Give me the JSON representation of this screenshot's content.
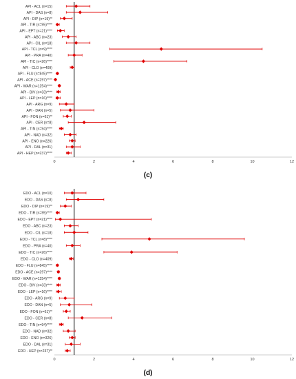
{
  "colors": {
    "marker": "#e00000",
    "whisker": "#e00000",
    "reference_line": "#222222",
    "axis": "#bdbdbd",
    "text": "#333333"
  },
  "panels": [
    {
      "id": "c",
      "label": "(c)"
    },
    {
      "id": "d",
      "label": "(d)"
    }
  ],
  "chart_data": [
    {
      "type": "scatter",
      "subtype": "forest-plot",
      "panel": "(c)",
      "xlim": [
        0,
        12
      ],
      "xticks": [
        0,
        2,
        4,
        6,
        8,
        10,
        12
      ],
      "reference_x": 1,
      "grid": false,
      "rows": [
        {
          "label": "API - ACL (n=15)",
          "x": 1.1,
          "lo": 0.6,
          "hi": 1.8
        },
        {
          "label": "API - DAS (n=8)",
          "x": 1.3,
          "lo": 0.6,
          "hi": 2.7
        },
        {
          "label": "API - DIP (n=19)**",
          "x": 0.5,
          "lo": 0.3,
          "hi": 0.9
        },
        {
          "label": "API - TIR (n=95)****",
          "x": 0.15,
          "lo": 0.1,
          "hi": 0.25
        },
        {
          "label": "API - EPT (n=21)****",
          "x": 0.3,
          "lo": 0.15,
          "hi": 0.5
        },
        {
          "label": "API - ABC (n=23)",
          "x": 0.7,
          "lo": 0.4,
          "hi": 1.1
        },
        {
          "label": "API - CIL (n=18)",
          "x": 1.1,
          "lo": 0.6,
          "hi": 1.8
        },
        {
          "label": "API - TCL (n=9)****",
          "x": 5.4,
          "lo": 2.8,
          "hi": 10.5
        },
        {
          "label": "API - PRA (n=40)",
          "x": 1.0,
          "lo": 0.7,
          "hi": 1.4
        },
        {
          "label": "API - TIC (n=26)****",
          "x": 4.5,
          "lo": 3.0,
          "hi": 6.7
        },
        {
          "label": "API - CLO (n=409)",
          "x": 0.9,
          "lo": 0.8,
          "hi": 1.0
        },
        {
          "label": "API - FLU (n=845)****",
          "x": 0.15,
          "lo": 0.1,
          "hi": 0.2
        },
        {
          "label": "API - ACE (n=297)****",
          "x": 0.05,
          "lo": 0.02,
          "hi": 0.1
        },
        {
          "label": "API - WAR (n=1254)****",
          "x": 0.25,
          "lo": 0.2,
          "hi": 0.3
        },
        {
          "label": "API - BIV (n=33)****",
          "x": 0.2,
          "lo": 0.12,
          "hi": 0.3
        },
        {
          "label": "API - LEP (n=16)****",
          "x": 0.15,
          "lo": 0.08,
          "hi": 0.3
        },
        {
          "label": "API - ARG (n=9)",
          "x": 0.6,
          "lo": 0.25,
          "hi": 1.0
        },
        {
          "label": "API - DAN (n=5)",
          "x": 0.8,
          "lo": 0.3,
          "hi": 2.0
        },
        {
          "label": "API - FON (n=61)**",
          "x": 0.65,
          "lo": 0.45,
          "hi": 0.85
        },
        {
          "label": "API - CER (n=8)",
          "x": 1.5,
          "lo": 0.7,
          "hi": 3.1
        },
        {
          "label": "API - TIN (n=94)****",
          "x": 0.35,
          "lo": 0.25,
          "hi": 0.45
        },
        {
          "label": "API - NAD (n=32)",
          "x": 0.8,
          "lo": 0.5,
          "hi": 1.1
        },
        {
          "label": "API - ENO (n=226)",
          "x": 0.9,
          "lo": 0.75,
          "hi": 1.05
        },
        {
          "label": "API - DAL (n=31)",
          "x": 0.9,
          "lo": 0.6,
          "hi": 1.3
        },
        {
          "label": "API - HEP (n=237)****",
          "x": 0.7,
          "lo": 0.6,
          "hi": 0.85
        }
      ]
    },
    {
      "type": "scatter",
      "subtype": "forest-plot",
      "panel": "(d)",
      "xlim": [
        0,
        12
      ],
      "xticks": [
        0,
        2,
        4,
        6,
        8,
        10,
        12
      ],
      "reference_x": 1,
      "grid": false,
      "rows": [
        {
          "label": "EDO - ACL (n=10)",
          "x": 0.9,
          "lo": 0.5,
          "hi": 1.6
        },
        {
          "label": "EDO - DAS (n=8)",
          "x": 1.2,
          "lo": 0.6,
          "hi": 2.5
        },
        {
          "label": "EDO - DIP (n=19)**",
          "x": 0.55,
          "lo": 0.3,
          "hi": 0.85
        },
        {
          "label": "EDO - TIR (n=95)****",
          "x": 0.15,
          "lo": 0.1,
          "hi": 0.25
        },
        {
          "label": "EDO - EPT (n=21)****",
          "x": 0.3,
          "lo": 0.05,
          "hi": 4.9
        },
        {
          "label": "EDO - ABC (n=23)",
          "x": 0.8,
          "lo": 0.5,
          "hi": 1.2
        },
        {
          "label": "EDO - CIL (n=18)",
          "x": 1.0,
          "lo": 0.5,
          "hi": 1.7
        },
        {
          "label": "EDO - TCL (n=8)****",
          "x": 4.8,
          "lo": 2.4,
          "hi": 9.6
        },
        {
          "label": "EDO - PRA (n=40)",
          "x": 0.9,
          "lo": 0.6,
          "hi": 1.3
        },
        {
          "label": "EDO - TIC (n=26)****",
          "x": 3.9,
          "lo": 2.5,
          "hi": 6.2
        },
        {
          "label": "EDO - CLO (n=409)",
          "x": 0.85,
          "lo": 0.75,
          "hi": 0.95
        },
        {
          "label": "EDO - FLU (n=845)****",
          "x": 0.15,
          "lo": 0.1,
          "hi": 0.2
        },
        {
          "label": "EDO - ACE (n=297)****",
          "x": 0.2,
          "lo": 0.15,
          "hi": 0.25
        },
        {
          "label": "EDO - WAR (n=1254)****",
          "x": 0.25,
          "lo": 0.2,
          "hi": 0.3
        },
        {
          "label": "EDO - BIV (n=33)****",
          "x": 0.2,
          "lo": 0.12,
          "hi": 0.3
        },
        {
          "label": "EDO - LEP (n=16)****",
          "x": 0.2,
          "lo": 0.1,
          "hi": 0.35
        },
        {
          "label": "EDO - ARG (n=9)",
          "x": 0.55,
          "lo": 0.25,
          "hi": 1.0
        },
        {
          "label": "EDO - DAN (n=5)",
          "x": 0.75,
          "lo": 0.3,
          "hi": 1.9
        },
        {
          "label": "EDO - FON (n=61)**",
          "x": 0.6,
          "lo": 0.45,
          "hi": 0.8
        },
        {
          "label": "EDO - CER (n=8)",
          "x": 1.4,
          "lo": 0.7,
          "hi": 2.9
        },
        {
          "label": "EDO - TIN (n=94)****",
          "x": 0.35,
          "lo": 0.25,
          "hi": 0.45
        },
        {
          "label": "EDO - NAD (n=32)",
          "x": 0.7,
          "lo": 0.45,
          "hi": 1.05
        },
        {
          "label": "EDO - ENO (n=326)",
          "x": 0.9,
          "lo": 0.75,
          "hi": 1.05
        },
        {
          "label": "EDO - DAL (n=31)",
          "x": 0.85,
          "lo": 0.55,
          "hi": 1.3
        },
        {
          "label": "EDO - HEP (n=237)**",
          "x": 0.65,
          "lo": 0.55,
          "hi": 0.8
        }
      ]
    }
  ]
}
